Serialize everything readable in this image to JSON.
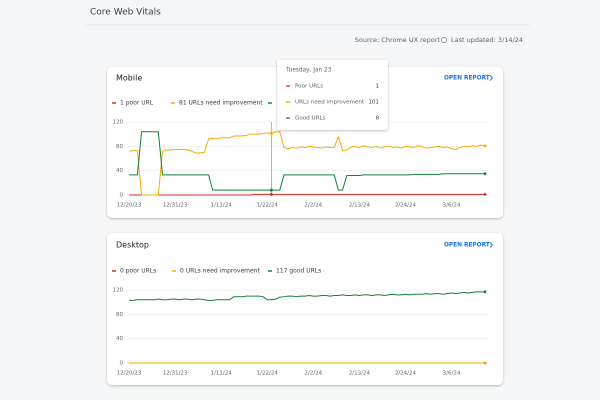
{
  "page": {
    "title": "Core Web Vitals",
    "source": "Source: Chrome UX report",
    "last_updated": "Last updated: 3/14/24"
  },
  "chart_data": [
    {
      "type": "line",
      "title": "Mobile",
      "link": "OPEN REPORT",
      "categories": [
        "12/20/23",
        null,
        null,
        null,
        null,
        null,
        null,
        null,
        null,
        null,
        null,
        "12/31/23",
        null,
        null,
        null,
        null,
        null,
        null,
        null,
        null,
        null,
        null,
        "1/11/24",
        null,
        null,
        null,
        null,
        null,
        null,
        null,
        null,
        null,
        null,
        "1/22/24",
        null,
        null,
        null,
        null,
        null,
        null,
        null,
        null,
        null,
        null,
        "2/2/24",
        null,
        null,
        null,
        null,
        null,
        null,
        null,
        null,
        null,
        null,
        "2/13/24",
        null,
        null,
        null,
        null,
        null,
        null,
        null,
        null,
        null,
        null,
        "2/24/24",
        null,
        null,
        null,
        null,
        null,
        null,
        null,
        null,
        null,
        null,
        "3/6/24",
        null,
        null,
        null,
        null,
        null,
        null,
        null,
        null
      ],
      "ylim": [
        0,
        120
      ],
      "yticks": [
        0,
        40,
        80,
        120
      ],
      "grid": true,
      "series": [
        {
          "name": "1 poor URL",
          "color": "#d93025",
          "values": [
            0,
            0,
            0,
            0,
            0,
            0,
            0,
            0,
            0,
            0,
            0,
            0,
            0,
            0,
            0,
            0,
            0,
            0,
            0,
            0,
            0,
            0,
            0,
            0,
            0,
            0,
            0,
            0,
            0,
            0,
            1,
            1,
            1,
            1,
            1,
            1,
            1,
            1,
            1,
            1,
            1,
            1,
            1,
            1,
            1,
            1,
            1,
            1,
            1,
            1,
            1,
            1,
            1,
            1,
            1,
            1,
            1,
            1,
            1,
            1,
            1,
            1,
            1,
            1,
            1,
            1,
            1,
            1,
            1,
            1,
            1,
            1,
            1,
            1,
            1,
            1,
            1,
            1,
            1,
            1,
            1,
            1,
            1,
            1,
            1,
            1
          ]
        },
        {
          "name": "81 URLs need improvement",
          "color": "#f9ab00",
          "values": [
            72,
            73,
            73,
            0,
            0,
            0,
            0,
            0,
            72,
            74,
            74,
            75,
            75,
            75,
            74,
            72,
            69,
            69,
            70,
            92,
            93,
            93,
            94,
            94,
            94,
            97,
            97,
            97,
            98,
            100,
            100,
            100,
            101,
            102,
            101,
            104,
            104,
            78,
            76,
            78,
            77,
            79,
            78,
            80,
            79,
            78,
            77,
            79,
            78,
            78,
            96,
            73,
            74,
            79,
            80,
            78,
            81,
            79,
            78,
            80,
            77,
            79,
            80,
            78,
            79,
            77,
            80,
            79,
            78,
            81,
            79,
            77,
            78,
            79,
            80,
            78,
            79,
            76,
            75,
            78,
            80,
            79,
            81,
            80,
            82,
            81
          ]
        },
        {
          "color": "#188038",
          "values": [
            33,
            33,
            33,
            104,
            104,
            104,
            104,
            104,
            33,
            33,
            33,
            33,
            33,
            33,
            33,
            33,
            33,
            33,
            33,
            33,
            8,
            8,
            8,
            8,
            8,
            8,
            8,
            8,
            8,
            8,
            8,
            8,
            8,
            8,
            8,
            8,
            8,
            33,
            33,
            33,
            33,
            33,
            33,
            33,
            33,
            33,
            33,
            33,
            33,
            33,
            8,
            8,
            32,
            32,
            32,
            32,
            33,
            33,
            33,
            33,
            33,
            33,
            33,
            33,
            33,
            33,
            33,
            33,
            34,
            34,
            34,
            34,
            34,
            34,
            34,
            35,
            35,
            35,
            35,
            35,
            35,
            35,
            35,
            35,
            35,
            35
          ]
        }
      ],
      "tooltip": {
        "title": "Tuesday, Jan 23",
        "rows": [
          {
            "label": "Poor URLs",
            "value": "1",
            "color": "#d93025"
          },
          {
            "label": "URLs need improvement",
            "value": "101",
            "color": "#f9ab00"
          },
          {
            "label": "Good URLs",
            "value": "8",
            "color": "#188038"
          }
        ]
      }
    },
    {
      "type": "line",
      "title": "Desktop",
      "link": "OPEN REPORT",
      "categories": [
        "12/20/23",
        null,
        null,
        null,
        null,
        null,
        null,
        null,
        null,
        null,
        null,
        "12/31/23",
        null,
        null,
        null,
        null,
        null,
        null,
        null,
        null,
        null,
        null,
        "1/11/24",
        null,
        null,
        null,
        null,
        null,
        null,
        null,
        null,
        null,
        null,
        "1/22/24",
        null,
        null,
        null,
        null,
        null,
        null,
        null,
        null,
        null,
        null,
        "2/2/24",
        null,
        null,
        null,
        null,
        null,
        null,
        null,
        null,
        null,
        null,
        "2/13/24",
        null,
        null,
        null,
        null,
        null,
        null,
        null,
        null,
        null,
        null,
        "2/24/24",
        null,
        null,
        null,
        null,
        null,
        null,
        null,
        null,
        null,
        null,
        "3/6/24",
        null,
        null,
        null,
        null,
        null,
        null,
        null,
        null
      ],
      "ylim": [
        0,
        120
      ],
      "yticks": [
        0,
        40,
        80,
        120
      ],
      "grid": true,
      "series": [
        {
          "name": "0 poor URLs",
          "color": "#d93025",
          "values": [
            0,
            0,
            0,
            0,
            0,
            0,
            0,
            0,
            0,
            0,
            0,
            0,
            0,
            0,
            0,
            0,
            0,
            0,
            0,
            0,
            0,
            0,
            0,
            0,
            0,
            0,
            0,
            0,
            0,
            0,
            0,
            0,
            0,
            0,
            0,
            0,
            0,
            0,
            0,
            0,
            0,
            0,
            0,
            0,
            0,
            0,
            0,
            0,
            0,
            0,
            0,
            0,
            0,
            0,
            0,
            0,
            0,
            0,
            0,
            0,
            0,
            0,
            0,
            0,
            0,
            0,
            0,
            0,
            0,
            0,
            0,
            0,
            0,
            0,
            0,
            0,
            0,
            0,
            0,
            0,
            0,
            0,
            0,
            0,
            0,
            0
          ]
        },
        {
          "name": "0 URLs need improvement",
          "color": "#f9ab00",
          "values": [
            0,
            0,
            0,
            0,
            0,
            0,
            0,
            0,
            0,
            0,
            0,
            0,
            0,
            0,
            0,
            0,
            0,
            0,
            0,
            0,
            0,
            0,
            0,
            0,
            0,
            0,
            0,
            0,
            0,
            0,
            0,
            0,
            0,
            0,
            0,
            0,
            0,
            0,
            0,
            0,
            0,
            0,
            0,
            0,
            0,
            0,
            0,
            0,
            0,
            0,
            0,
            0,
            0,
            0,
            0,
            0,
            0,
            0,
            0,
            0,
            0,
            0,
            0,
            0,
            0,
            0,
            0,
            0,
            0,
            0,
            0,
            0,
            0,
            0,
            0,
            0,
            0,
            0,
            0,
            0,
            0,
            0,
            0,
            0,
            0,
            0
          ]
        },
        {
          "name": "117 good URLs",
          "color": "#188038",
          "values": [
            103,
            103,
            104,
            104,
            104,
            104,
            104,
            105,
            104,
            104,
            105,
            105,
            104,
            105,
            105,
            104,
            105,
            105,
            104,
            103,
            103,
            104,
            104,
            104,
            104,
            109,
            109,
            109,
            110,
            110,
            110,
            110,
            109,
            104,
            104,
            105,
            108,
            109,
            110,
            110,
            109,
            110,
            110,
            111,
            110,
            110,
            111,
            111,
            110,
            111,
            111,
            112,
            111,
            111,
            112,
            111,
            112,
            112,
            111,
            112,
            112,
            111,
            112,
            113,
            112,
            112,
            113,
            112,
            113,
            113,
            113,
            114,
            113,
            114,
            114,
            113,
            114,
            115,
            114,
            115,
            116,
            115,
            116,
            117,
            117,
            117
          ]
        }
      ]
    }
  ]
}
